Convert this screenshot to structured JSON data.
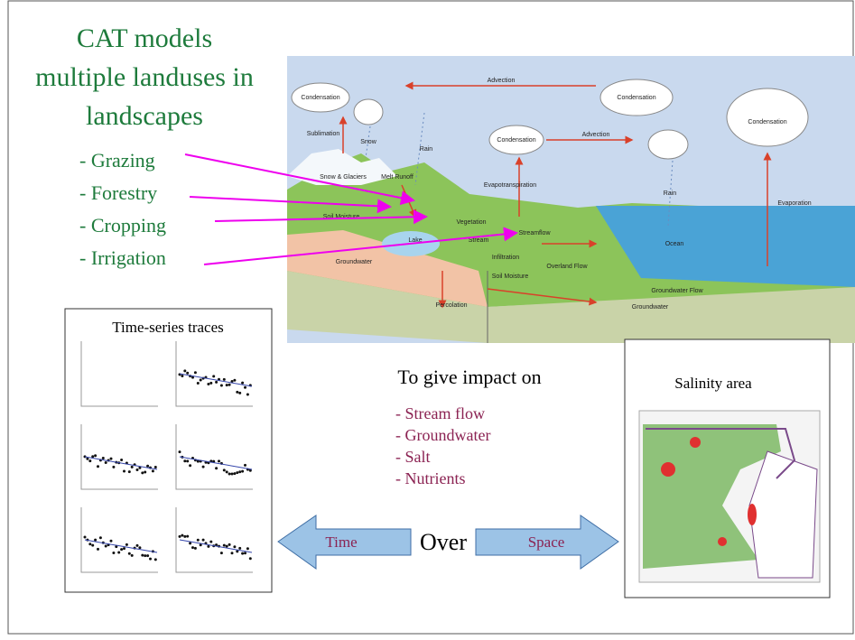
{
  "title": [
    "CAT models",
    "multiple landuses in",
    "landscapes"
  ],
  "landuses": [
    "- Grazing",
    "- Forestry",
    "- Cropping",
    "- Irrigation"
  ],
  "diagram_labels": [
    "Condensation",
    "Sublimation",
    "Snow",
    "Snow & Glaciers",
    "Melt Runoff",
    "Rain",
    "Advection",
    "Condensation",
    "Advection",
    "Condensation",
    "Condensation",
    "Rain",
    "Evapotranspiration",
    "Evaporation",
    "Vegetation",
    "Lake",
    "Stream",
    "Streamflow",
    "Infiltration",
    "Overland Flow",
    "Ocean",
    "Soil Moisture",
    "Soil Moisture",
    "Percolation",
    "Groundwater Flow",
    "Groundwater",
    "Groundwater"
  ],
  "timeseries": {
    "title": "Time-series traces"
  },
  "impact": {
    "heading": "To give impact on",
    "items": [
      "- Stream flow",
      "- Groundwater",
      "- Salt",
      "- Nutrients"
    ]
  },
  "salinity": {
    "title": "Salinity area"
  },
  "arrows": {
    "left": "Time",
    "middle": "Over",
    "right": "Space"
  }
}
